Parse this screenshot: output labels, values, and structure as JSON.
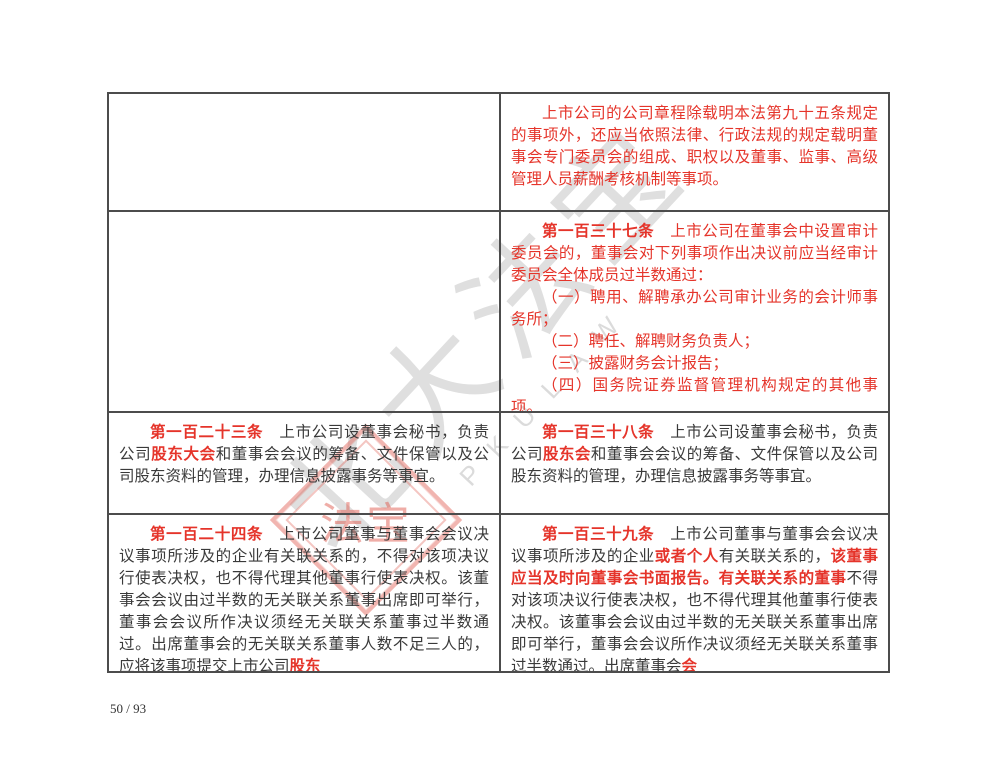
{
  "page": {
    "number_label": "50 / 93"
  },
  "colors": {
    "highlight_red": "#e5342a",
    "body_black": "#3a3a3a",
    "table_border": "#4c4c4c",
    "watermark_gray": "#c5c5c5",
    "seal_red": "#df5c50"
  },
  "watermark": {
    "cn_text": "北大法宝",
    "latin_text": "PKULAW",
    "seal_text": "法宝"
  },
  "table": {
    "rows": [
      {
        "left": {
          "paragraphs": []
        },
        "right": {
          "paragraphs": [
            {
              "runs": [
                {
                  "t": "上市公司的公司章程除载明本法第九十五条规定的事项外，还应当依照法律、行政法规的规定载明董事会专门委员会的组成、职权以及董事、监事、高级管理人员薪酬考核机制等事项。",
                  "s": "red"
                }
              ]
            }
          ]
        }
      },
      {
        "left": {
          "paragraphs": []
        },
        "right": {
          "paragraphs": [
            {
              "runs": [
                {
                  "t": "第一百三十七条",
                  "s": "red-bold"
                },
                {
                  "t": "　",
                  "s": "red"
                },
                {
                  "t": "上市公司在董事会中设置审计委员会的，董事会对下列事项作出决议前应当经审计委员会全体成员过半数通过：",
                  "s": "red"
                }
              ]
            },
            {
              "runs": [
                {
                  "t": "（一）聘用、解聘承办公司审计业务的会计师事务所；",
                  "s": "red"
                }
              ]
            },
            {
              "runs": [
                {
                  "t": "（二）聘任、解聘财务负责人；",
                  "s": "red"
                }
              ]
            },
            {
              "runs": [
                {
                  "t": "（三）披露财务会计报告；",
                  "s": "red"
                }
              ]
            },
            {
              "runs": [
                {
                  "t": "（四）国务院证券监督管理机构规定的其他事项。",
                  "s": "red"
                }
              ]
            }
          ]
        }
      },
      {
        "left": {
          "paragraphs": [
            {
              "runs": [
                {
                  "t": "第一百二十三条",
                  "s": "red-bold"
                },
                {
                  "t": "　",
                  "s": "black"
                },
                {
                  "t": "上市公司设董事会秘书，负责公司",
                  "s": "black"
                },
                {
                  "t": "股东大会",
                  "s": "red-bold"
                },
                {
                  "t": "和董事会会议的筹备、文件保管以及公司股东资料的管理，办理信息披露事务等事宜。",
                  "s": "black"
                }
              ]
            }
          ]
        },
        "right": {
          "paragraphs": [
            {
              "runs": [
                {
                  "t": "第一百三十八条",
                  "s": "red-bold"
                },
                {
                  "t": "　",
                  "s": "black"
                },
                {
                  "t": "上市公司设董事会秘书，负责公司",
                  "s": "black"
                },
                {
                  "t": "股东会",
                  "s": "red-bold"
                },
                {
                  "t": "和董事会会议的筹备、文件保管以及公司股东资料的管理，办理信息披露事务等事宜。",
                  "s": "black"
                }
              ]
            }
          ]
        }
      },
      {
        "left": {
          "paragraphs": [
            {
              "runs": [
                {
                  "t": "第一百二十四条",
                  "s": "red-bold"
                },
                {
                  "t": "　",
                  "s": "black"
                },
                {
                  "t": "上市公司董事与董事会会议决议事项所涉及的企业有关联关系的，不得对该项决议行使表决权，也不得代理其他董事行使表决权。该董事会会议由过半数的无关联关系董事出席即可举行，董事会会议所作决议须经无关联关系董事过半数通过。出席董事会的无关联关系董事人数不足三人的，应将该事项提交上市公司",
                  "s": "black"
                },
                {
                  "t": "股东",
                  "s": "red-bold"
                }
              ]
            }
          ]
        },
        "right": {
          "paragraphs": [
            {
              "runs": [
                {
                  "t": "第一百三十九条",
                  "s": "red-bold"
                },
                {
                  "t": "　",
                  "s": "black"
                },
                {
                  "t": "上市公司董事与董事会会议决议事项所涉及的企业",
                  "s": "black"
                },
                {
                  "t": "或者个人",
                  "s": "red-bold"
                },
                {
                  "t": "有关联关系的，",
                  "s": "black"
                },
                {
                  "t": "该董事应当及时向董事会书面报告。有关联关系的董事",
                  "s": "red-bold"
                },
                {
                  "t": "不得对该项决议行使表决权，也不得代理其他董事行使表决权。该董事会会议由过半数的无关联关系董事出席即可举行，董事会会议所作决议须经无关联关系董事过半数通过。出席董事会",
                  "s": "black"
                },
                {
                  "t": "会",
                  "s": "red-bold"
                }
              ]
            }
          ]
        }
      }
    ]
  }
}
